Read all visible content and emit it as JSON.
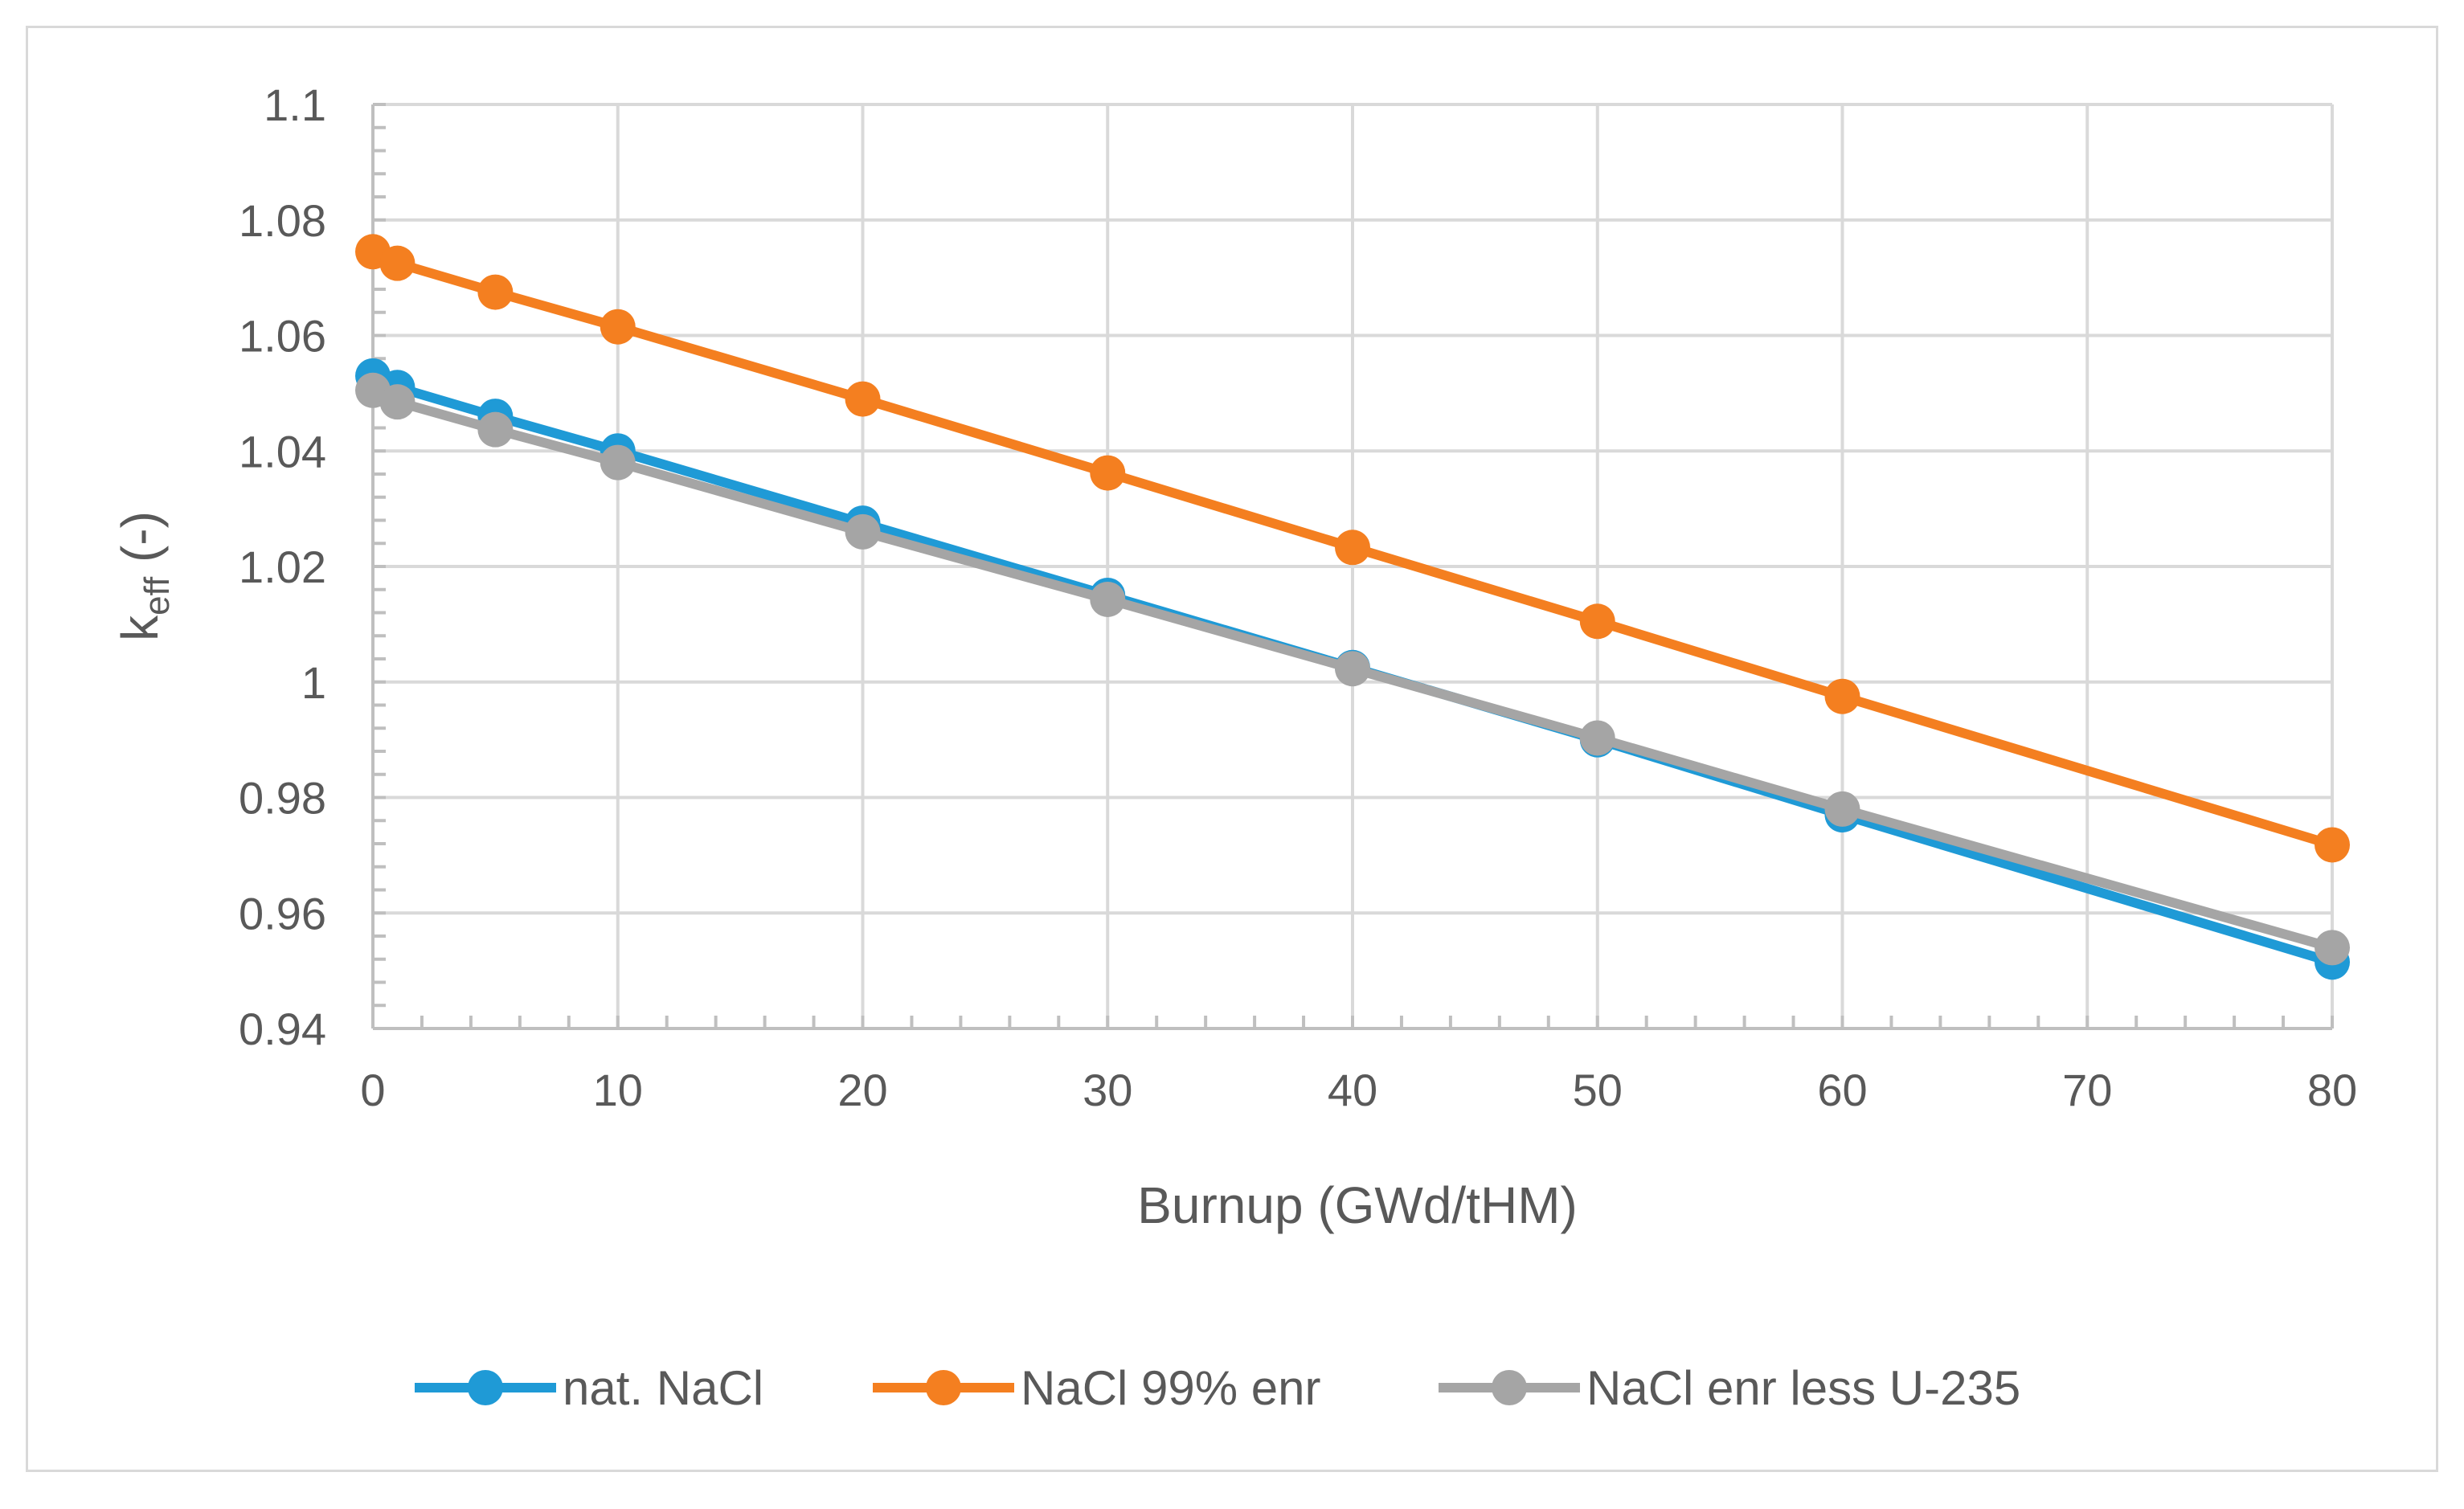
{
  "chart_data": {
    "type": "line",
    "title": "",
    "xlabel": "Burnup (GWd/tHM)",
    "ylabel": "k",
    "ylabel_sub": "eff",
    "ylabel_suffix": " (-)",
    "xlim": [
      0,
      80
    ],
    "ylim": [
      0.94,
      1.1
    ],
    "x_ticks": [
      0,
      10,
      20,
      30,
      40,
      50,
      60,
      70,
      80
    ],
    "y_ticks": [
      0.94,
      0.96,
      0.98,
      1,
      1.02,
      1.04,
      1.06,
      1.08,
      1.1
    ],
    "x_tick_labels": [
      "0",
      "10",
      "20",
      "30",
      "40",
      "50",
      "60",
      "70",
      "80"
    ],
    "y_tick_labels": [
      "0.94",
      "0.96",
      "0.98",
      "1",
      "1.02",
      "1.04",
      "1.06",
      "1.08",
      "1.1"
    ],
    "grid": true,
    "legend_position": "bottom",
    "x": [
      0,
      1,
      5,
      10,
      20,
      30,
      40,
      50,
      60,
      80
    ],
    "series": [
      {
        "name": "nat. NaCl",
        "color": "#1f9ad6",
        "values": [
          1.053,
          1.051,
          1.046,
          1.04,
          1.0275,
          1.015,
          1.0025,
          0.99,
          0.977,
          0.9515
        ]
      },
      {
        "name": "NaCl 99% enr",
        "color": "#f47f20",
        "values": [
          1.0745,
          1.0725,
          1.0675,
          1.0615,
          1.049,
          1.0362,
          1.0233,
          1.0105,
          0.9975,
          0.9718
        ]
      },
      {
        "name": "NaCl enr less U-235",
        "color": "#a5a5a5",
        "values": [
          1.0505,
          1.0485,
          1.0437,
          1.038,
          1.026,
          1.0143,
          1.0023,
          0.9903,
          0.978,
          0.954
        ]
      }
    ]
  }
}
